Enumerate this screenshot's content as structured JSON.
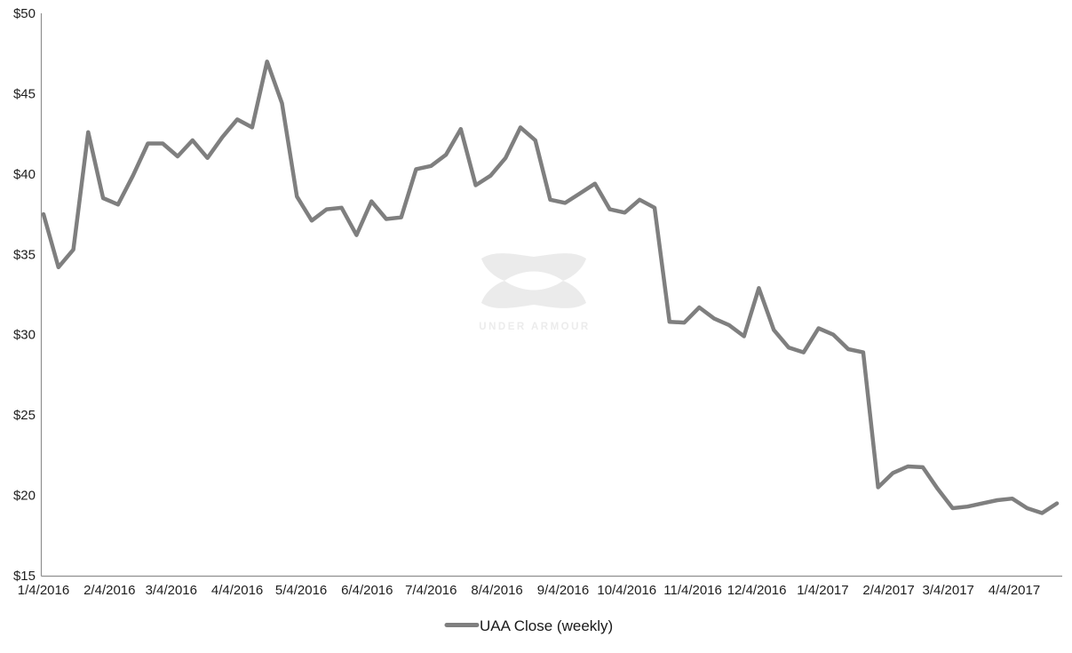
{
  "watermark": {
    "text": "UNDER ARMOUR"
  },
  "chart_data": {
    "type": "line",
    "title": "",
    "xlabel": "",
    "ylabel": "",
    "grid": false,
    "legend_position": "bottom-center",
    "ylim": [
      15,
      50
    ],
    "y_tick_format": "$",
    "yticks": [
      {
        "label": "$50",
        "value": 50
      },
      {
        "label": "$45",
        "value": 45
      },
      {
        "label": "$40",
        "value": 40
      },
      {
        "label": "$35",
        "value": 35
      },
      {
        "label": "$30",
        "value": 30
      },
      {
        "label": "$25",
        "value": 25
      },
      {
        "label": "$20",
        "value": 20
      },
      {
        "label": "$15",
        "value": 15
      }
    ],
    "xticks": [
      {
        "label": "1/4/2016",
        "week_index": 0
      },
      {
        "label": "2/4/2016",
        "week_index": 4.43
      },
      {
        "label": "3/4/2016",
        "week_index": 8.57
      },
      {
        "label": "4/4/2016",
        "week_index": 13
      },
      {
        "label": "5/4/2016",
        "week_index": 17.29
      },
      {
        "label": "6/4/2016",
        "week_index": 21.71
      },
      {
        "label": "7/4/2016",
        "week_index": 26
      },
      {
        "label": "8/4/2016",
        "week_index": 30.43
      },
      {
        "label": "9/4/2016",
        "week_index": 34.86
      },
      {
        "label": "10/4/2016",
        "week_index": 39.14
      },
      {
        "label": "11/4/2016",
        "week_index": 43.57
      },
      {
        "label": "12/4/2016",
        "week_index": 47.86
      },
      {
        "label": "1/4/2017",
        "week_index": 52.29
      },
      {
        "label": "2/4/2017",
        "week_index": 56.71
      },
      {
        "label": "3/4/2017",
        "week_index": 60.71
      },
      {
        "label": "4/4/2017",
        "week_index": 65.14
      }
    ],
    "x_unit": "week",
    "x_dates": [
      "1/4/2016",
      "1/11/2016",
      "1/18/2016",
      "1/25/2016",
      "2/1/2016",
      "2/8/2016",
      "2/15/2016",
      "2/22/2016",
      "2/29/2016",
      "3/7/2016",
      "3/14/2016",
      "3/21/2016",
      "3/28/2016",
      "4/4/2016",
      "4/11/2016",
      "4/18/2016",
      "4/25/2016",
      "5/2/2016",
      "5/9/2016",
      "5/16/2016",
      "5/23/2016",
      "5/30/2016",
      "6/6/2016",
      "6/13/2016",
      "6/20/2016",
      "6/27/2016",
      "7/4/2016",
      "7/11/2016",
      "7/18/2016",
      "7/25/2016",
      "8/1/2016",
      "8/8/2016",
      "8/15/2016",
      "8/22/2016",
      "8/29/2016",
      "9/5/2016",
      "9/12/2016",
      "9/19/2016",
      "9/26/2016",
      "10/3/2016",
      "10/10/2016",
      "10/17/2016",
      "10/24/2016",
      "10/31/2016",
      "11/7/2016",
      "11/14/2016",
      "11/21/2016",
      "11/28/2016",
      "12/5/2016",
      "12/12/2016",
      "12/19/2016",
      "12/26/2016",
      "1/2/2017",
      "1/9/2017",
      "1/16/2017",
      "1/23/2017",
      "1/30/2017",
      "2/6/2017",
      "2/13/2017",
      "2/20/2017",
      "2/27/2017",
      "3/6/2017",
      "3/13/2017",
      "3/20/2017",
      "3/27/2017",
      "4/3/2017",
      "4/10/2017",
      "4/17/2017",
      "4/24/2017"
    ],
    "series": [
      {
        "name": "UAA Close (weekly)",
        "color": "#7f7f7f",
        "values": [
          37.5,
          34.2,
          35.3,
          42.6,
          38.5,
          38.1,
          39.9,
          41.9,
          41.9,
          41.1,
          42.1,
          41.0,
          42.3,
          43.4,
          42.9,
          47.0,
          44.4,
          38.6,
          37.1,
          37.8,
          37.9,
          36.2,
          38.3,
          37.2,
          37.3,
          40.3,
          40.5,
          41.2,
          42.8,
          39.3,
          39.9,
          41.0,
          42.9,
          42.1,
          38.4,
          38.2,
          38.8,
          39.4,
          37.8,
          37.6,
          38.4,
          37.9,
          30.8,
          30.75,
          31.7,
          31.0,
          30.6,
          29.9,
          32.9,
          30.3,
          29.2,
          28.9,
          30.4,
          30.0,
          29.1,
          28.9,
          20.5,
          21.4,
          21.8,
          21.75,
          20.4,
          19.2,
          19.3,
          19.5,
          19.7,
          19.8,
          19.2,
          18.9,
          19.5
        ]
      }
    ]
  }
}
